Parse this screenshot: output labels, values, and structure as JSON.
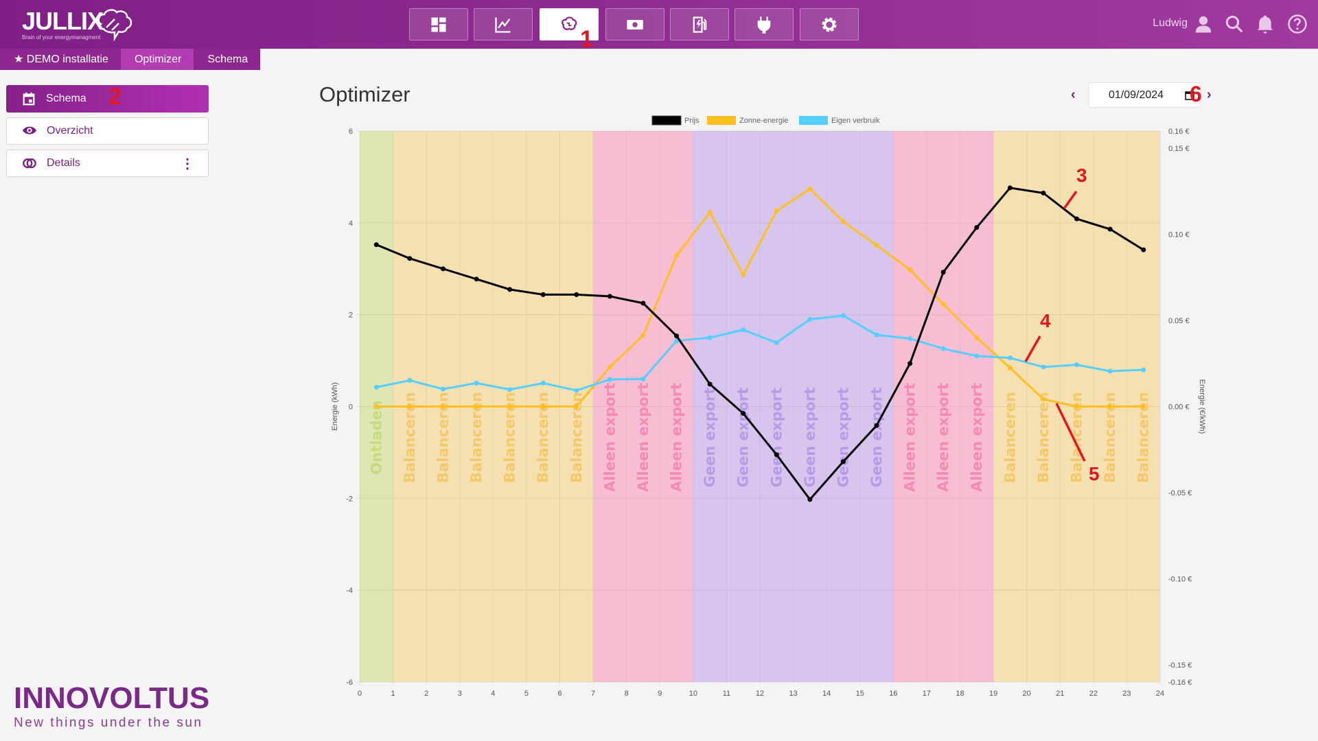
{
  "header": {
    "logo": "JULLIX",
    "logo_tagline": "Brain of your energymanagment",
    "user": "Ludwig",
    "nav": [
      {
        "icon": "dashboard-icon"
      },
      {
        "icon": "chart-line-icon"
      },
      {
        "icon": "brain-icon",
        "active": true
      },
      {
        "icon": "money-icon"
      },
      {
        "icon": "ev-charger-icon"
      },
      {
        "icon": "plug-icon"
      },
      {
        "icon": "gear-icon"
      }
    ]
  },
  "breadcrumb": [
    "DEMO installatie",
    "Optimizer",
    "Schema"
  ],
  "sidebar": {
    "items": [
      {
        "label": "Schema",
        "icon": "calendar-icon",
        "active": true
      },
      {
        "label": "Overzicht",
        "icon": "eye-icon"
      },
      {
        "label": "Details",
        "icon": "rings-icon"
      }
    ]
  },
  "page": {
    "title": "Optimizer",
    "date": "01/09/2024"
  },
  "annotations": [
    "1",
    "2",
    "3",
    "4",
    "5",
    "6"
  ],
  "footer": {
    "brand": "INNOVOLTUS",
    "slogan": "New things under the sun"
  },
  "colors": {
    "accent": "#8e2690",
    "price": "#000000",
    "solar": "#ffbf20",
    "consumption": "#55cfff"
  },
  "chart_data": {
    "type": "line",
    "legend": [
      "Prijs",
      "Zonne-energie",
      "Eigen verbruik"
    ],
    "legend_position": "top",
    "ylabel": "Energie (kWh)",
    "y2label": "Energie (€/kWh)",
    "xlim": [
      0,
      24
    ],
    "ylim": [
      -6,
      6
    ],
    "y2lim": [
      -0.16,
      0.16
    ],
    "x_ticks": [
      0,
      1,
      2,
      3,
      4,
      5,
      6,
      7,
      8,
      9,
      10,
      11,
      12,
      13,
      14,
      15,
      16,
      17,
      18,
      19,
      20,
      21,
      22,
      23,
      24
    ],
    "y_ticks": [
      -6,
      -4,
      -2,
      0,
      2,
      4,
      6
    ],
    "y2_ticks": [
      "0.16 €",
      "0.15 €",
      "0.10 €",
      "0.05 €",
      "0.00 €",
      "-0.05 €",
      "-0.10 €",
      "-0.15 €",
      "-0.16 €"
    ],
    "y2_tick_values": [
      0.16,
      0.15,
      0.1,
      0.05,
      0,
      -0.05,
      -0.1,
      -0.15,
      -0.16
    ],
    "x": [
      0.5,
      1.5,
      2.5,
      3.5,
      4.5,
      5.5,
      6.5,
      7.5,
      8.5,
      9.5,
      10.5,
      11.5,
      12.5,
      13.5,
      14.5,
      15.5,
      16.5,
      17.5,
      18.5,
      19.5,
      20.5,
      21.5,
      22.5,
      23.5
    ],
    "series": [
      {
        "name": "Prijs",
        "axis": "right",
        "values": [
          0.094,
          0.086,
          0.08,
          0.074,
          0.068,
          0.065,
          0.065,
          0.064,
          0.06,
          0.041,
          0.013,
          -0.004,
          -0.028,
          -0.054,
          -0.032,
          -0.011,
          0.025,
          0.078,
          0.104,
          0.127,
          0.124,
          0.109,
          0.103,
          0.091
        ]
      },
      {
        "name": "Zonne-energie",
        "axis": "left",
        "values": [
          0,
          0,
          0,
          0,
          0,
          0,
          0,
          0.86,
          1.55,
          3.29,
          4.23,
          2.87,
          4.26,
          4.74,
          4.03,
          3.51,
          2.98,
          2.23,
          1.5,
          0.84,
          0.16,
          0,
          0,
          0
        ]
      },
      {
        "name": "Eigen verbruik",
        "axis": "left",
        "values": [
          0.42,
          0.57,
          0.38,
          0.51,
          0.37,
          0.51,
          0.35,
          0.59,
          0.6,
          1.43,
          1.5,
          1.67,
          1.39,
          1.9,
          1.98,
          1.56,
          1.48,
          1.26,
          1.1,
          1.06,
          0.86,
          0.91,
          0.77,
          0.8
        ]
      }
    ],
    "modes": [
      "Ontladen",
      "Balanceren",
      "Balanceren",
      "Balanceren",
      "Balanceren",
      "Balanceren",
      "Balanceren",
      "Alleen export",
      "Alleen export",
      "Alleen export",
      "Geen export",
      "Geen export",
      "Geen export",
      "Geen export",
      "Geen export",
      "Geen export",
      "Alleen export",
      "Alleen export",
      "Alleen export",
      "Balanceren",
      "Balanceren",
      "Balanceren",
      "Balanceren",
      "Balanceren"
    ],
    "mode_colors": {
      "Ontladen": [
        "#dfe6b4",
        "#c5dc7c"
      ],
      "Balanceren": [
        "#f4e0b0",
        "#f5c86a"
      ],
      "Alleen export": [
        "#f7bed3",
        "#f48ab5"
      ],
      "Geen export": [
        "#d7c5ee",
        "#b79ae8"
      ]
    }
  }
}
